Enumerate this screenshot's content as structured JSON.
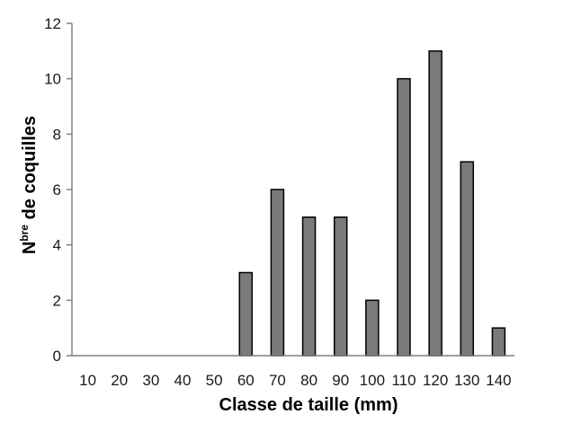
{
  "chart_data": {
    "type": "bar",
    "categories": [
      "10",
      "20",
      "30",
      "40",
      "50",
      "60",
      "70",
      "80",
      "90",
      "100",
      "110",
      "120",
      "130",
      "140"
    ],
    "values": [
      0,
      0,
      0,
      0,
      0,
      3,
      6,
      5,
      5,
      2,
      10,
      11,
      7,
      1
    ],
    "xlabel": "Classe de taille (mm)",
    "ylabel": {
      "main": "N",
      "sup": "bre",
      "rest": " de coquilles"
    },
    "ylim": [
      0,
      12
    ],
    "yticks": [
      0,
      2,
      4,
      6,
      8,
      10,
      12
    ],
    "grid": false,
    "colors": {
      "bar": "#7a7a7a",
      "bar_edge": "#000000",
      "axis": "#808080"
    }
  }
}
